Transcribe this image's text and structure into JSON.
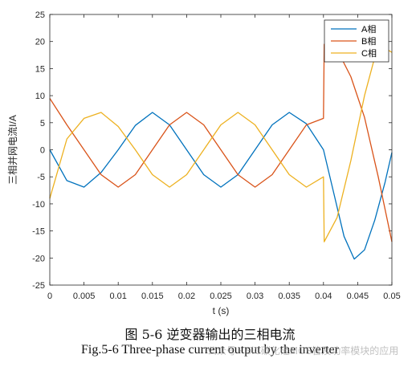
{
  "chart_data": {
    "type": "line",
    "xlabel": "t (s)",
    "ylabel": "三相并网电流I/A",
    "xlim": [
      0,
      0.05
    ],
    "ylim": [
      -25,
      25
    ],
    "xticks": [
      "0",
      "0.005",
      "0.01",
      "0.015",
      "0.02",
      "0.025",
      "0.03",
      "0.035",
      "0.04",
      "0.045",
      "0.05"
    ],
    "yticks": [
      "25",
      "20",
      "15",
      "10",
      "5",
      "0",
      "-5",
      "-10",
      "-15",
      "-20",
      "-25"
    ],
    "legend_position": "top-right",
    "series": [
      {
        "name": "A相",
        "color": "#0072BD",
        "points": [
          [
            0,
            0
          ],
          [
            0.0025,
            -5.7
          ],
          [
            0.005,
            -6.9
          ],
          [
            0.0075,
            -4.2
          ],
          [
            0.01,
            0
          ],
          [
            0.0125,
            4.5
          ],
          [
            0.015,
            6.9
          ],
          [
            0.0175,
            4.6
          ],
          [
            0.02,
            0
          ],
          [
            0.0225,
            -4.6
          ],
          [
            0.025,
            -6.9
          ],
          [
            0.0275,
            -4.6
          ],
          [
            0.03,
            0
          ],
          [
            0.0325,
            4.6
          ],
          [
            0.035,
            6.9
          ],
          [
            0.0375,
            4.8
          ],
          [
            0.04,
            0
          ],
          [
            0.0415,
            -8
          ],
          [
            0.043,
            -16
          ],
          [
            0.0445,
            -20.2
          ],
          [
            0.046,
            -18.5
          ],
          [
            0.0475,
            -13
          ],
          [
            0.049,
            -6
          ],
          [
            0.05,
            -0.5
          ]
        ]
      },
      {
        "name": "B相",
        "color": "#D95319",
        "points": [
          [
            0,
            9.5
          ],
          [
            0.0025,
            4.6
          ],
          [
            0.005,
            0
          ],
          [
            0.0075,
            -4.6
          ],
          [
            0.01,
            -6.9
          ],
          [
            0.0125,
            -4.6
          ],
          [
            0.015,
            0
          ],
          [
            0.0175,
            4.6
          ],
          [
            0.02,
            6.9
          ],
          [
            0.0225,
            4.6
          ],
          [
            0.025,
            0
          ],
          [
            0.0275,
            -4.6
          ],
          [
            0.03,
            -6.9
          ],
          [
            0.0325,
            -4.6
          ],
          [
            0.035,
            0
          ],
          [
            0.0375,
            4.6
          ],
          [
            0.04,
            5.8
          ],
          [
            0.0401,
            19.5
          ],
          [
            0.042,
            18.5
          ],
          [
            0.044,
            13.5
          ],
          [
            0.046,
            6
          ],
          [
            0.048,
            -5
          ],
          [
            0.05,
            -17
          ]
        ]
      },
      {
        "name": "C相",
        "color": "#EDB120",
        "points": [
          [
            0,
            -9
          ],
          [
            0.0025,
            2
          ],
          [
            0.005,
            5.8
          ],
          [
            0.0075,
            6.9
          ],
          [
            0.01,
            4.3
          ],
          [
            0.0125,
            0
          ],
          [
            0.015,
            -4.6
          ],
          [
            0.0175,
            -6.9
          ],
          [
            0.02,
            -4.6
          ],
          [
            0.0225,
            0
          ],
          [
            0.025,
            4.6
          ],
          [
            0.0275,
            6.9
          ],
          [
            0.03,
            4.6
          ],
          [
            0.0325,
            0
          ],
          [
            0.035,
            -4.6
          ],
          [
            0.0375,
            -6.9
          ],
          [
            0.04,
            -5
          ],
          [
            0.0401,
            -17
          ],
          [
            0.042,
            -12.5
          ],
          [
            0.044,
            -2
          ],
          [
            0.046,
            10
          ],
          [
            0.048,
            19.5
          ],
          [
            0.05,
            18
          ]
        ]
      }
    ]
  },
  "caption": {
    "cn": "图 5-6 逆变器输出的三相电流",
    "en": "Fig.5-6 Three-phase current output by the inverter"
  },
  "watermark": "公众号 · SiC碳化硅MOS管及功率模块的应用"
}
